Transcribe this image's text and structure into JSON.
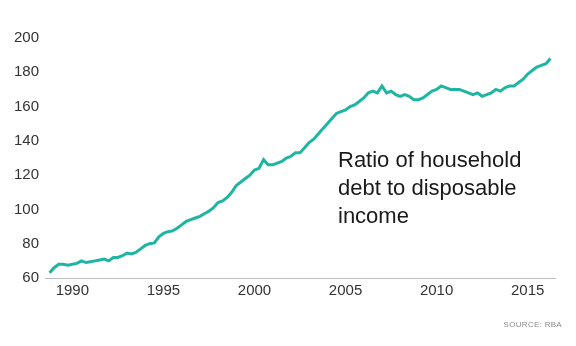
{
  "chart_data": {
    "type": "line",
    "annotation": "Ratio of household debt to disposable income",
    "source": "SOURCE: RBA",
    "x": [
      1988.75,
      1989,
      1989.25,
      1989.5,
      1989.75,
      1990,
      1990.25,
      1990.5,
      1990.75,
      1991,
      1991.25,
      1991.5,
      1991.75,
      1992,
      1992.25,
      1992.5,
      1992.75,
      1993,
      1993.25,
      1993.5,
      1993.75,
      1994,
      1994.25,
      1994.5,
      1994.75,
      1995,
      1995.25,
      1995.5,
      1995.75,
      1996,
      1996.25,
      1996.5,
      1996.75,
      1997,
      1997.25,
      1997.5,
      1997.75,
      1998,
      1998.25,
      1998.5,
      1998.75,
      1999,
      1999.25,
      1999.5,
      1999.75,
      2000,
      2000.25,
      2000.5,
      2000.75,
      2001,
      2001.25,
      2001.5,
      2001.75,
      2002,
      2002.25,
      2002.5,
      2002.75,
      2003,
      2003.25,
      2003.5,
      2003.75,
      2004,
      2004.25,
      2004.5,
      2004.75,
      2005,
      2005.25,
      2005.5,
      2005.75,
      2006,
      2006.25,
      2006.5,
      2006.75,
      2007,
      2007.25,
      2007.5,
      2007.75,
      2008,
      2008.25,
      2008.5,
      2008.75,
      2009,
      2009.25,
      2009.5,
      2009.75,
      2010,
      2010.25,
      2010.5,
      2010.75,
      2011,
      2011.25,
      2011.5,
      2011.75,
      2012,
      2012.25,
      2012.5,
      2012.75,
      2013,
      2013.25,
      2013.5,
      2013.75,
      2014,
      2014.25,
      2014.5,
      2014.75,
      2015,
      2015.25,
      2015.5,
      2015.75,
      2016,
      2016.25
    ],
    "values": [
      63,
      66,
      68,
      68,
      67.5,
      68,
      68.5,
      70,
      69,
      69.5,
      70,
      70.5,
      71,
      70,
      72,
      72,
      73,
      74.5,
      74,
      75,
      77,
      79,
      80,
      80.5,
      84,
      86,
      87,
      87.5,
      89,
      91,
      93,
      94,
      95,
      96,
      97.5,
      99,
      101,
      104,
      105,
      107,
      110,
      114,
      116,
      118,
      120,
      123,
      124,
      129,
      126,
      126,
      127,
      128,
      130,
      131,
      133,
      133,
      136,
      139,
      141,
      144,
      147,
      150,
      153,
      156,
      157,
      158,
      160,
      161,
      163,
      165,
      168,
      169,
      168,
      172,
      168,
      169,
      167,
      166,
      167,
      166,
      164,
      164,
      165,
      167,
      169,
      170,
      172,
      171,
      170,
      170,
      170,
      169,
      168,
      167,
      168,
      166,
      167,
      168,
      170,
      169,
      171,
      172,
      172,
      174,
      176,
      179,
      181,
      183,
      184,
      185,
      188
    ],
    "color": "#1fb5a3",
    "xlim": [
      1988.5,
      2016.5
    ],
    "xticks": [
      1990,
      1995,
      2000,
      2005,
      2010,
      2015
    ],
    "ylim": [
      60,
      200
    ],
    "yticks": [
      60,
      80,
      100,
      120,
      140,
      160,
      180,
      200
    ],
    "grid": false
  }
}
